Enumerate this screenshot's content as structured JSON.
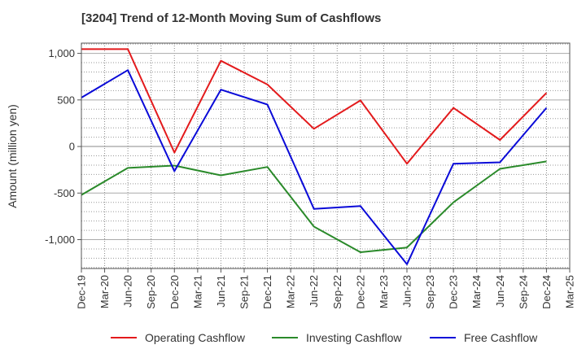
{
  "chart_data": {
    "type": "line",
    "title": "[3204]  Trend of 12-Month Moving Sum of Cashflows",
    "ylabel": "Amount (million yen)",
    "xlabel": "",
    "x": [
      "Dec-19",
      "Mar-20",
      "Jun-20",
      "Sep-20",
      "Dec-20",
      "Mar-21",
      "Jun-21",
      "Sep-21",
      "Dec-21",
      "Mar-22",
      "Jun-22",
      "Sep-22",
      "Dec-22",
      "Mar-23",
      "Jun-23",
      "Sep-23",
      "Dec-23",
      "Mar-24",
      "Jun-24",
      "Sep-24",
      "Dec-24",
      "Mar-25"
    ],
    "ylim": [
      -1310,
      1110
    ],
    "yticks": [
      1000,
      500,
      0,
      -500,
      -1000
    ],
    "ytick_labels": [
      "1,000",
      "500",
      "0",
      "-500",
      "-1,000"
    ],
    "grid": true,
    "legend_position": "bottom",
    "series": [
      {
        "name": "Operating Cashflow",
        "color": "#e31a1c",
        "points": [
          [
            0,
            1045
          ],
          [
            2,
            1045
          ],
          [
            4,
            -65
          ],
          [
            6,
            920
          ],
          [
            8,
            665
          ],
          [
            10,
            190
          ],
          [
            12,
            495
          ],
          [
            14,
            -185
          ],
          [
            16,
            415
          ],
          [
            18,
            70
          ],
          [
            20,
            575
          ]
        ]
      },
      {
        "name": "Investing Cashflow",
        "color": "#2a8a2a",
        "points": [
          [
            0,
            -520
          ],
          [
            2,
            -230
          ],
          [
            4,
            -205
          ],
          [
            6,
            -310
          ],
          [
            8,
            -220
          ],
          [
            10,
            -860
          ],
          [
            12,
            -1135
          ],
          [
            14,
            -1085
          ],
          [
            16,
            -600
          ],
          [
            18,
            -240
          ],
          [
            20,
            -160
          ]
        ]
      },
      {
        "name": "Free Cashflow",
        "color": "#0a0ad8",
        "points": [
          [
            0,
            525
          ],
          [
            2,
            820
          ],
          [
            4,
            -265
          ],
          [
            6,
            610
          ],
          [
            8,
            450
          ],
          [
            10,
            -670
          ],
          [
            12,
            -640
          ],
          [
            14,
            -1265
          ],
          [
            16,
            -185
          ],
          [
            18,
            -170
          ],
          [
            20,
            415
          ]
        ]
      }
    ]
  }
}
